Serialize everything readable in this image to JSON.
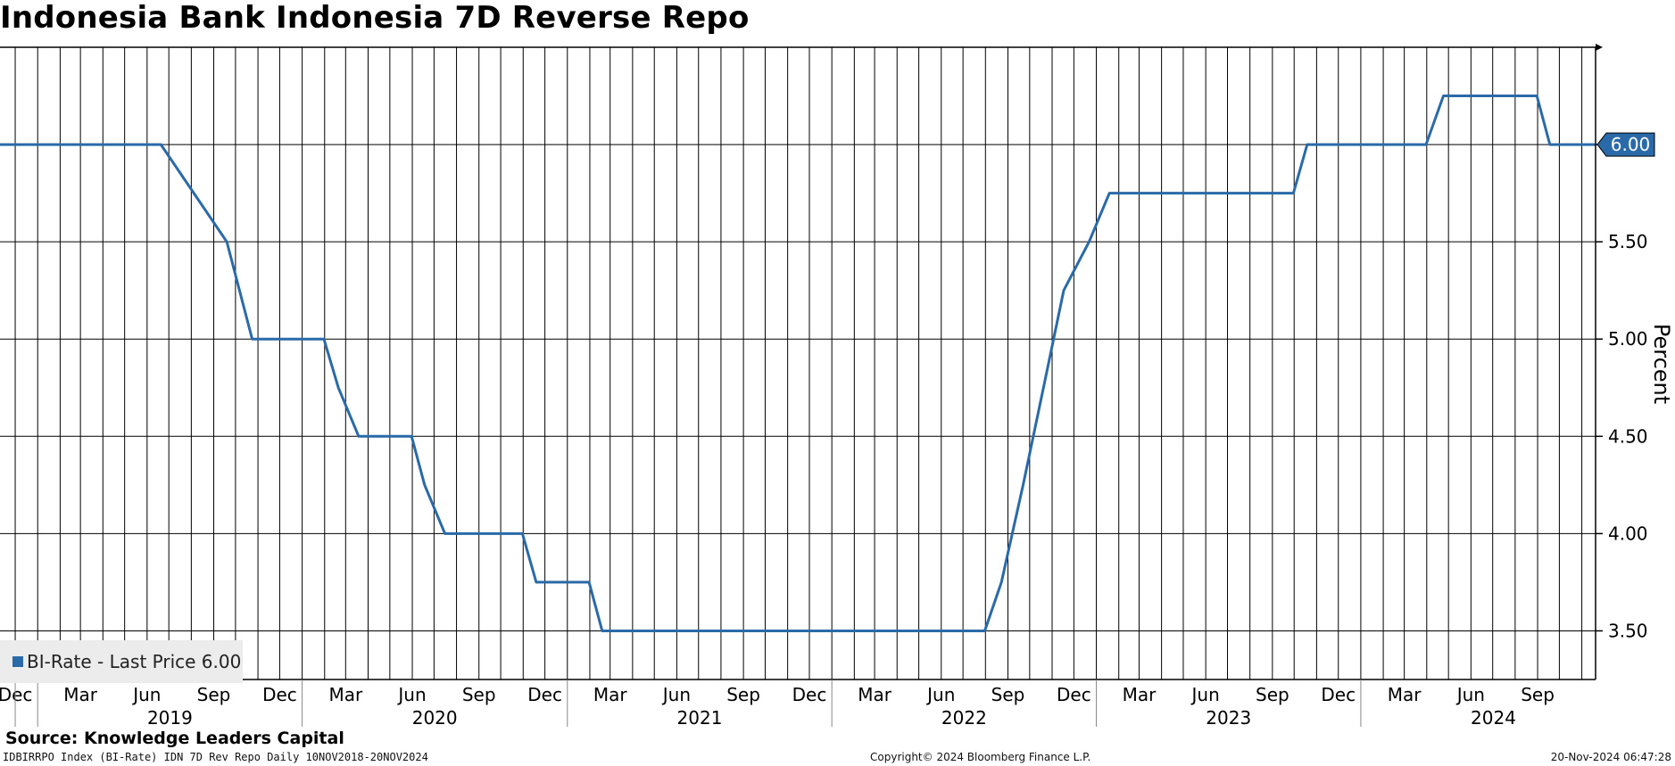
{
  "title": "Indonesia Bank Indonesia 7D Reverse Repo",
  "legend": {
    "label": "BI-Rate - Last Price 6.00",
    "color": "#2a6aa8"
  },
  "source": "Source: Knowledge Leaders Capital",
  "footer": {
    "left": "IDBIRRPO Index (BI-Rate) IDN 7D Rev Repo  Daily 10NOV2018-20NOV2024",
    "center": "Copyright© 2024 Bloomberg Finance L.P.",
    "right": "20-Nov-2024 06:47:28"
  },
  "chart_data": {
    "type": "line",
    "title": "Indonesia Bank Indonesia 7D Reverse Repo",
    "ylabel": "Percent",
    "ylim": [
      3.25,
      6.5
    ],
    "y_ticks": [
      "3.50",
      "4.00",
      "4.50",
      "5.00",
      "5.50",
      "6.00"
    ],
    "x_range": [
      "2018-11-10",
      "2024-11-20"
    ],
    "x_month_labels": [
      {
        "date": "2018-12",
        "label": "Dec"
      },
      {
        "date": "2019-03",
        "label": "Mar"
      },
      {
        "date": "2019-06",
        "label": "Jun"
      },
      {
        "date": "2019-09",
        "label": "Sep"
      },
      {
        "date": "2019-12",
        "label": "Dec"
      },
      {
        "date": "2020-03",
        "label": "Mar"
      },
      {
        "date": "2020-06",
        "label": "Jun"
      },
      {
        "date": "2020-09",
        "label": "Sep"
      },
      {
        "date": "2020-12",
        "label": "Dec"
      },
      {
        "date": "2021-03",
        "label": "Mar"
      },
      {
        "date": "2021-06",
        "label": "Jun"
      },
      {
        "date": "2021-09",
        "label": "Sep"
      },
      {
        "date": "2021-12",
        "label": "Dec"
      },
      {
        "date": "2022-03",
        "label": "Mar"
      },
      {
        "date": "2022-06",
        "label": "Jun"
      },
      {
        "date": "2022-09",
        "label": "Sep"
      },
      {
        "date": "2022-12",
        "label": "Dec"
      },
      {
        "date": "2023-03",
        "label": "Mar"
      },
      {
        "date": "2023-06",
        "label": "Jun"
      },
      {
        "date": "2023-09",
        "label": "Sep"
      },
      {
        "date": "2023-12",
        "label": "Dec"
      },
      {
        "date": "2024-03",
        "label": "Mar"
      },
      {
        "date": "2024-06",
        "label": "Jun"
      },
      {
        "date": "2024-09",
        "label": "Sep"
      }
    ],
    "x_year_labels": [
      "2019",
      "2020",
      "2021",
      "2022",
      "2023",
      "2024"
    ],
    "grid": true,
    "last_value_label": "6.00",
    "legend_position": "bottom-left",
    "series": [
      {
        "name": "BI-Rate",
        "color": "#2a6aa8",
        "points": [
          {
            "date": "2018-11-10",
            "value": 6.0
          },
          {
            "date": "2019-06-20",
            "value": 6.0
          },
          {
            "date": "2019-09-19",
            "value": 5.5
          },
          {
            "date": "2019-10-24",
            "value": 5.0
          },
          {
            "date": "2020-01-31",
            "value": 5.0
          },
          {
            "date": "2020-02-20",
            "value": 4.75
          },
          {
            "date": "2020-03-19",
            "value": 4.5
          },
          {
            "date": "2020-05-31",
            "value": 4.5
          },
          {
            "date": "2020-06-18",
            "value": 4.25
          },
          {
            "date": "2020-07-16",
            "value": 4.0
          },
          {
            "date": "2020-10-31",
            "value": 4.0
          },
          {
            "date": "2020-11-19",
            "value": 3.75
          },
          {
            "date": "2021-01-31",
            "value": 3.75
          },
          {
            "date": "2021-02-18",
            "value": 3.5
          },
          {
            "date": "2022-07-31",
            "value": 3.5
          },
          {
            "date": "2022-08-23",
            "value": 3.75
          },
          {
            "date": "2022-09-22",
            "value": 4.25
          },
          {
            "date": "2022-10-20",
            "value": 4.75
          },
          {
            "date": "2022-11-17",
            "value": 5.25
          },
          {
            "date": "2022-12-22",
            "value": 5.5
          },
          {
            "date": "2023-01-19",
            "value": 5.75
          },
          {
            "date": "2023-09-30",
            "value": 5.75
          },
          {
            "date": "2023-10-19",
            "value": 6.0
          },
          {
            "date": "2024-03-31",
            "value": 6.0
          },
          {
            "date": "2024-04-24",
            "value": 6.25
          },
          {
            "date": "2024-08-31",
            "value": 6.25
          },
          {
            "date": "2024-09-18",
            "value": 6.0
          },
          {
            "date": "2024-11-20",
            "value": 6.0
          }
        ]
      }
    ]
  }
}
